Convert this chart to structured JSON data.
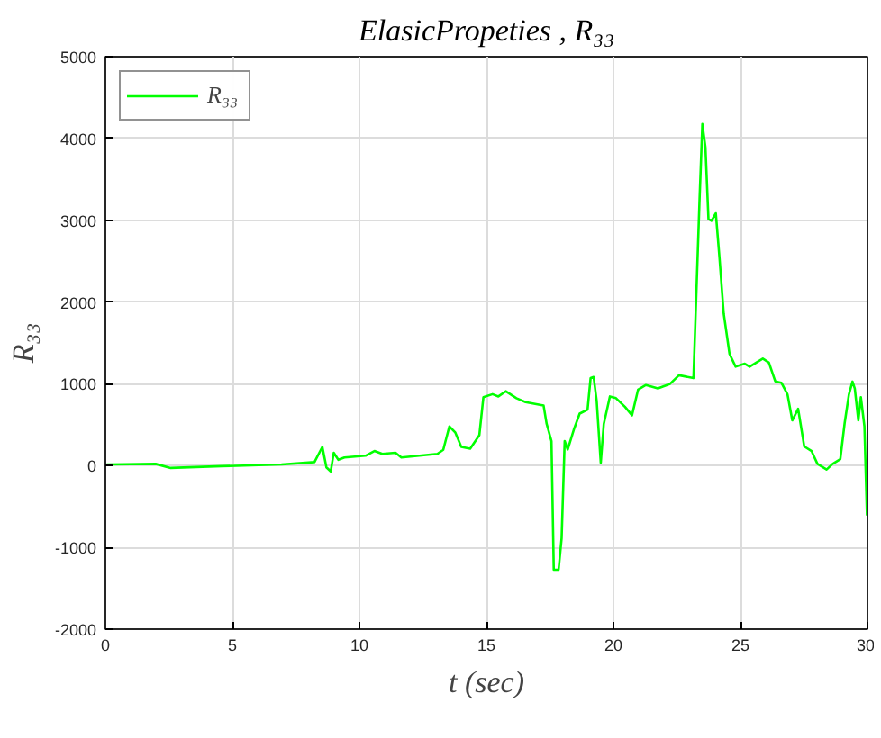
{
  "chart_data": {
    "type": "line",
    "title": "ElasicPropeties , R₃₃",
    "xlabel": "t (sec)",
    "ylabel": "R₃₃",
    "xlim": [
      0,
      30
    ],
    "ylim": [
      -2000,
      5000
    ],
    "xticks": [
      0,
      5,
      10,
      15,
      20,
      25,
      30
    ],
    "yticks": [
      -2000,
      -1000,
      0,
      1000,
      2000,
      3000,
      4000,
      5000
    ],
    "grid": true,
    "legend": "top left",
    "line_style": "solid",
    "series": [
      {
        "name": "R₃₃",
        "color": "#00ff00",
        "x": [
          0,
          0.1,
          1.98,
          2.57,
          4.58,
          6.93,
          8.23,
          8.54,
          8.7,
          8.87,
          8.99,
          9.17,
          9.41,
          10.24,
          10.59,
          10.9,
          11.42,
          11.65,
          13.07,
          13.3,
          13.54,
          13.77,
          14.01,
          14.36,
          14.72,
          14.88,
          15.24,
          15.47,
          15.76,
          16.18,
          16.54,
          17.25,
          17.37,
          17.56,
          17.65,
          17.84,
          17.96,
          18.08,
          18.2,
          18.44,
          18.67,
          18.98,
          19.1,
          19.22,
          19.34,
          19.5,
          19.62,
          19.86,
          20.1,
          20.45,
          20.73,
          20.97,
          21.28,
          21.75,
          22.23,
          22.58,
          23.15,
          23.39,
          23.5,
          23.62,
          23.74,
          23.86,
          24.03,
          24.17,
          24.34,
          24.57,
          24.81,
          25.17,
          25.36,
          25.88,
          26.12,
          26.37,
          26.61,
          26.85,
          27.04,
          27.27,
          27.51,
          27.8,
          28.03,
          28.39,
          28.63,
          28.93,
          29.1,
          29.27,
          29.41,
          29.5,
          29.64,
          29.74,
          29.88,
          29.98
        ],
        "values": [
          10,
          14,
          21,
          -29,
          -7,
          14,
          43,
          229,
          -21,
          -71,
          157,
          71,
          100,
          121,
          179,
          143,
          157,
          100,
          143,
          193,
          479,
          407,
          229,
          207,
          371,
          836,
          874,
          846,
          909,
          825,
          776,
          734,
          510,
          300,
          -1273,
          -1273,
          -888,
          300,
          196,
          440,
          636,
          685,
          1070,
          1084,
          790,
          35,
          510,
          846,
          825,
          720,
          615,
          930,
          986,
          944,
          1000,
          1105,
          1070,
          3260,
          4176,
          3895,
          3014,
          2993,
          3085,
          2557,
          1860,
          1365,
          1210,
          1246,
          1210,
          1309,
          1260,
          1030,
          1014,
          872,
          553,
          695,
          234,
          177,
          21,
          -48,
          21,
          78,
          518,
          872,
          1028,
          943,
          553,
          837,
          482,
          -610
        ]
      }
    ]
  }
}
